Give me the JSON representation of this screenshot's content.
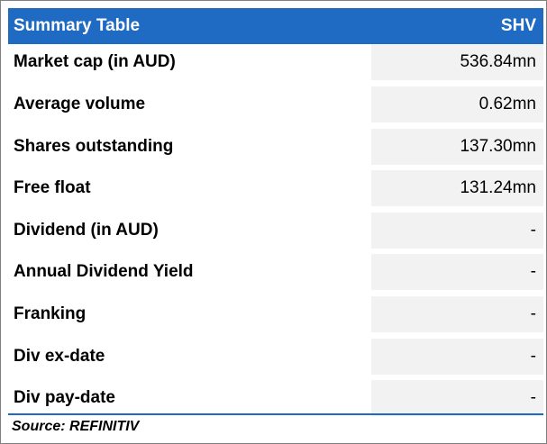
{
  "header": {
    "title": "Summary Table",
    "ticker": "SHV"
  },
  "rows": [
    {
      "label": "Market cap (in AUD)",
      "value": "536.84mn"
    },
    {
      "label": "Average volume",
      "value": "0.62mn"
    },
    {
      "label": "Shares outstanding",
      "value": "137.30mn"
    },
    {
      "label": "Free float",
      "value": "131.24mn"
    },
    {
      "label": "Dividend (in AUD)",
      "value": "-"
    },
    {
      "label": "Annual Dividend Yield",
      "value": "-"
    },
    {
      "label": "Franking",
      "value": "-"
    },
    {
      "label": "Div ex-date",
      "value": "-"
    },
    {
      "label": "Div pay-date",
      "value": "-"
    }
  ],
  "footer": {
    "source": "Source: REFINITIV"
  },
  "colors": {
    "header_bg": "#1f6bc4",
    "value_cell_bg": "#f2f2f2"
  }
}
